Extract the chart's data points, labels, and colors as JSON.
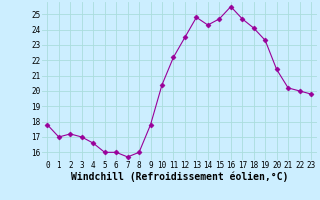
{
  "x": [
    0,
    1,
    2,
    3,
    4,
    5,
    6,
    7,
    8,
    9,
    10,
    11,
    12,
    13,
    14,
    15,
    16,
    17,
    18,
    19,
    20,
    21,
    22,
    23
  ],
  "y": [
    17.8,
    17.0,
    17.2,
    17.0,
    16.6,
    16.0,
    16.0,
    15.7,
    16.0,
    17.8,
    20.4,
    22.2,
    23.5,
    24.8,
    24.3,
    24.7,
    25.5,
    24.7,
    24.1,
    23.3,
    21.4,
    20.2,
    20.0,
    19.8
  ],
  "line_color": "#990099",
  "marker": "D",
  "marker_size": 2.5,
  "xlabel": "Windchill (Refroidissement éolien,°C)",
  "xlim": [
    -0.5,
    23.5
  ],
  "ylim": [
    15.5,
    25.8
  ],
  "yticks": [
    16,
    17,
    18,
    19,
    20,
    21,
    22,
    23,
    24,
    25
  ],
  "xticks": [
    0,
    1,
    2,
    3,
    4,
    5,
    6,
    7,
    8,
    9,
    10,
    11,
    12,
    13,
    14,
    15,
    16,
    17,
    18,
    19,
    20,
    21,
    22,
    23
  ],
  "grid_color": "#aadddd",
  "bg_color": "#cceeff",
  "tick_label_fontsize": 5.5,
  "xlabel_fontsize": 7.0,
  "line_width": 0.8
}
